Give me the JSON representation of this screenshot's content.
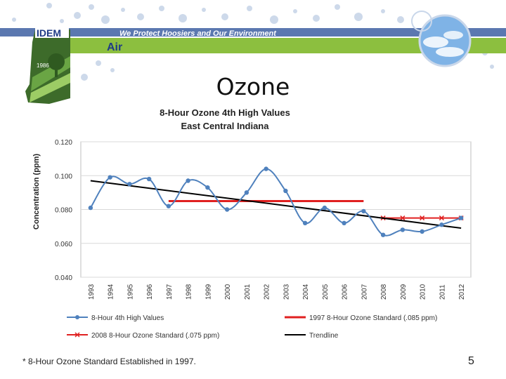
{
  "header": {
    "logo_text": "IDEM",
    "tagline": "We Protect Hoosiers and Our Environment",
    "section": "Air",
    "seal_text": "1986"
  },
  "slide": {
    "title": "Ozone",
    "footnote": "* 8-Hour Ozone Standard Established in 1997.",
    "page_number": "5"
  },
  "colors": {
    "banner_blue": "#5b78b0",
    "banner_green": "#8cbf3f",
    "high_values": "#4f81bd",
    "std_1997": "#e02020",
    "std_2008": "#e02020",
    "trendline": "#000000"
  },
  "chart_data": {
    "type": "line",
    "title": "8-Hour Ozone 4th High Values",
    "subtitle": "East Central Indiana",
    "xlabel": "",
    "ylabel": "Concentration (ppm)",
    "ylim": [
      0.04,
      0.12
    ],
    "yticks": [
      "0.040",
      "0.060",
      "0.080",
      "0.100",
      "0.120"
    ],
    "x": [
      "1993",
      "1994",
      "1995",
      "1996",
      "1997",
      "1998",
      "1999",
      "2000",
      "2001",
      "2002",
      "2003",
      "2004",
      "2005",
      "2006",
      "2007",
      "2008",
      "2009",
      "2010",
      "2011",
      "2012"
    ],
    "grid": true,
    "legend_position": "bottom",
    "series": [
      {
        "name": "8-Hour 4th High Values",
        "values": [
          0.081,
          0.099,
          0.095,
          0.098,
          0.082,
          0.097,
          0.093,
          0.08,
          0.09,
          0.104,
          0.091,
          0.072,
          0.081,
          0.072,
          0.079,
          0.065,
          0.068,
          0.067,
          0.071,
          0.075
        ]
      },
      {
        "name": "1997 8-Hour Ozone Standard (.085 ppm)",
        "values": [
          null,
          null,
          null,
          null,
          0.085,
          0.085,
          0.085,
          0.085,
          0.085,
          0.085,
          0.085,
          0.085,
          0.085,
          0.085,
          0.085,
          null,
          null,
          null,
          null,
          null
        ]
      },
      {
        "name": "2008 8-Hour Ozone Standard (.075 ppm)",
        "values": [
          null,
          null,
          null,
          null,
          null,
          null,
          null,
          null,
          null,
          null,
          null,
          null,
          null,
          null,
          null,
          0.075,
          0.075,
          0.075,
          0.075,
          0.075
        ]
      },
      {
        "name": "Trendline",
        "values": [
          0.097,
          null,
          null,
          null,
          null,
          null,
          null,
          null,
          null,
          null,
          null,
          null,
          null,
          null,
          null,
          null,
          null,
          null,
          null,
          0.069
        ]
      }
    ]
  }
}
